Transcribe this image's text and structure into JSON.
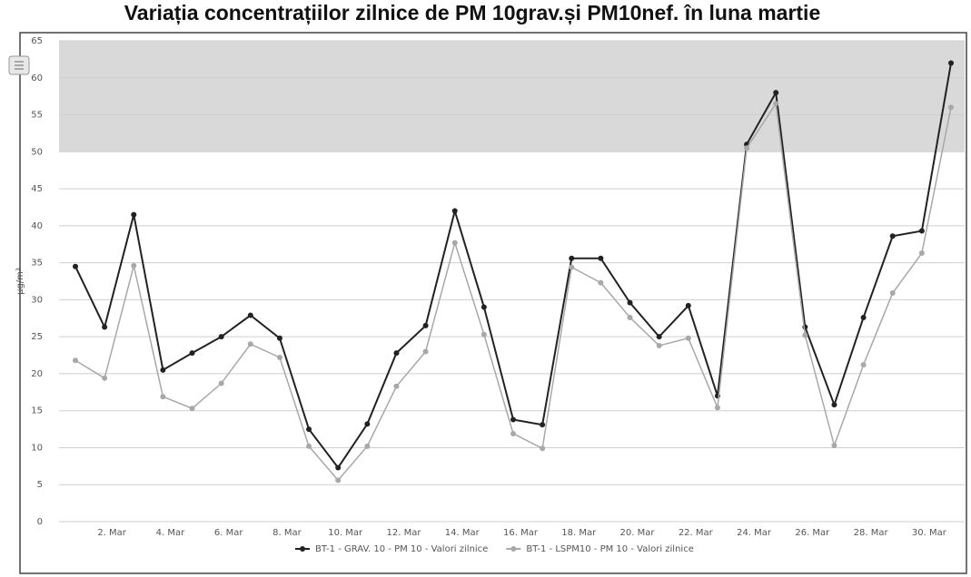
{
  "chart_data": {
    "type": "line",
    "title": "Variația concentrațiilor zilnice de PM 10grav.și PM10nef. în luna martie",
    "y_label": "µg/m³",
    "categories": [
      null,
      "2. Mar",
      null,
      "4. Mar",
      null,
      "6. Mar",
      null,
      "8. Mar",
      null,
      "10. Mar",
      null,
      "12. Mar",
      null,
      "14. Mar",
      null,
      "16. Mar",
      null,
      "18. Mar",
      null,
      "20. Mar",
      null,
      "22. Mar",
      null,
      "24. Mar",
      null,
      "26. Mar",
      null,
      "28. Mar",
      null,
      "30. Mar",
      null
    ],
    "series": [
      {
        "name": "BT-1 - GRAV. 10 - PM 10 - Valori zilnice",
        "color": "#222222",
        "values": [
          34.5,
          26.3,
          41.5,
          20.5,
          22.8,
          25,
          27.9,
          24.8,
          12.5,
          7.3,
          13.2,
          22.8,
          26.5,
          42,
          29,
          13.8,
          13.1,
          35.6,
          35.6,
          29.6,
          25,
          29.2,
          17,
          51,
          58,
          26.3,
          15.8,
          27.6,
          38.6,
          39.3,
          62
        ]
      },
      {
        "name": "BT-1 - LSPM10 - PM 10 - Valori zilnice",
        "color": "#a8a8a8",
        "values": [
          21.8,
          19.4,
          34.6,
          16.9,
          15.3,
          18.7,
          24,
          22.2,
          10.2,
          5.6,
          10.2,
          18.3,
          23,
          37.7,
          25.3,
          11.9,
          9.9,
          34.4,
          32.3,
          27.6,
          23.8,
          24.8,
          15.4,
          50.5,
          56.5,
          25.2,
          10.3,
          21.2,
          30.9,
          36.3,
          56
        ]
      }
    ],
    "ylim": [
      0,
      65
    ],
    "yticks": [
      0,
      5,
      10,
      15,
      20,
      25,
      30,
      35,
      40,
      45,
      50,
      55,
      60,
      65
    ],
    "threshold": 50,
    "threshold_color": "#d9d9d9",
    "grid": true,
    "legend": "bottom"
  }
}
